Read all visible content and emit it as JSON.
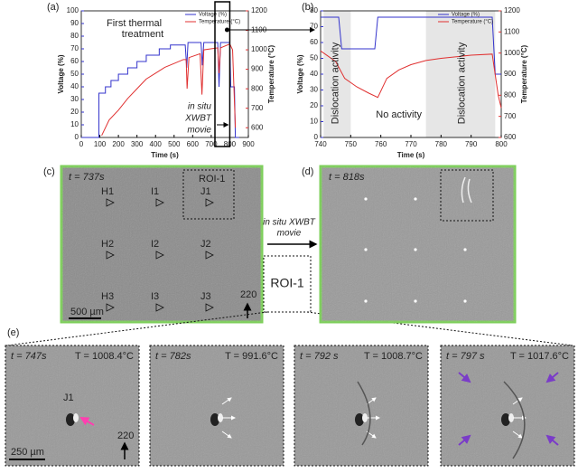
{
  "chart_data": [
    {
      "type": "line",
      "panel": "(a)",
      "xlabel": "Time (s)",
      "ylabel": "Voltage (%)",
      "y2label": "Temperature (°C)",
      "xlim": [
        0,
        900
      ],
      "xticks": [
        0,
        100,
        200,
        300,
        400,
        500,
        600,
        700,
        800,
        900
      ],
      "ylim": [
        0,
        100
      ],
      "yticks": [
        0,
        10,
        20,
        30,
        40,
        50,
        60,
        70,
        80,
        90,
        100
      ],
      "y2lim": [
        550,
        1200
      ],
      "y2ticks": [
        600,
        700,
        800,
        900,
        1000,
        1100,
        1200
      ],
      "series": [
        {
          "name": "Voltage (%)",
          "color": "#3333cc",
          "x": [
            0,
            95,
            95,
            130,
            130,
            160,
            160,
            200,
            200,
            250,
            250,
            300,
            300,
            350,
            350,
            420,
            420,
            480,
            480,
            560,
            568,
            575,
            645,
            652,
            660,
            735,
            742,
            750,
            800,
            805,
            825,
            830,
            850
          ],
          "values": [
            0,
            0,
            35,
            35,
            40,
            40,
            45,
            45,
            50,
            50,
            55,
            55,
            60,
            60,
            65,
            65,
            70,
            70,
            73,
            73,
            55,
            75,
            75,
            57,
            75,
            75,
            40,
            75,
            75,
            40,
            40,
            0,
            0
          ]
        },
        {
          "name": "Temperature (°C)",
          "color": "#e03030",
          "axis": "y2",
          "x": [
            110,
            150,
            200,
            250,
            300,
            350,
            400,
            450,
            500,
            550,
            565,
            570,
            580,
            640,
            650,
            660,
            735,
            742,
            750,
            800,
            815,
            830
          ],
          "values": [
            560,
            640,
            690,
            750,
            800,
            850,
            880,
            910,
            930,
            950,
            950,
            800,
            960,
            980,
            770,
            1000,
            1010,
            880,
            1010,
            1030,
            1000,
            600
          ]
        }
      ],
      "annotation": [
        "First thermal",
        "treatment"
      ],
      "movie_label": [
        "in situ",
        "XWBT",
        "movie"
      ],
      "highlight": [
        720,
        800
      ]
    },
    {
      "type": "line",
      "panel": "(b)",
      "xlabel": "Time (s)",
      "ylabel": "Voltage (%)",
      "y2label": "Temperature (°C)",
      "xlim": [
        740,
        800
      ],
      "xticks": [
        740,
        750,
        760,
        770,
        780,
        790,
        800
      ],
      "ylim": [
        0,
        80
      ],
      "yticks": [
        0,
        10,
        20,
        30,
        40,
        50,
        60,
        70,
        80
      ],
      "y2lim": [
        600,
        1200
      ],
      "y2ticks": [
        600,
        700,
        800,
        900,
        1000,
        1100,
        1200
      ],
      "series": [
        {
          "name": "Voltage (%)",
          "color": "#3333cc",
          "x": [
            740,
            746,
            747,
            758,
            759,
            797,
            798,
            800
          ],
          "values": [
            76,
            76,
            56,
            56,
            76,
            76,
            40,
            40
          ]
        },
        {
          "name": "Temperature (°C)",
          "color": "#e03030",
          "axis": "y2",
          "x": [
            740,
            745,
            748,
            752,
            756,
            759,
            762,
            766,
            770,
            775,
            780,
            790,
            797,
            799,
            800
          ],
          "values": [
            1010,
            960,
            880,
            840,
            810,
            790,
            880,
            920,
            945,
            965,
            975,
            990,
            995,
            800,
            740
          ]
        }
      ],
      "shaded": [
        [
          741,
          750
        ],
        [
          775,
          798
        ]
      ],
      "regions": [
        "Dislocation activity",
        "No activity",
        "Dislocation activity"
      ]
    }
  ],
  "panel_c": {
    "label": "(c)",
    "time": "t = 737s",
    "roi": "ROI-1",
    "markers": [
      "H1",
      "I1",
      "J1",
      "H2",
      "I2",
      "J2",
      "H3",
      "I3",
      "J3"
    ],
    "g": "220",
    "scale": "500 µm"
  },
  "panel_d": {
    "label": "(d)",
    "time": "t = 818s"
  },
  "movie": [
    "in situ XWBT",
    "movie"
  ],
  "roi": "ROI-1",
  "panel_e": {
    "label": "(e)",
    "frames": [
      {
        "time": "t = 747s",
        "temp": "T = 1008.4°C"
      },
      {
        "time": "t = 782s",
        "temp": "T = 991.6°C"
      },
      {
        "time": "t = 792 s",
        "temp": "T = 1008.7°C"
      },
      {
        "time": "t = 797 s",
        "temp": "T = 1017.6°C"
      }
    ],
    "spot": "J1",
    "g": "220",
    "scale": "250 µm"
  }
}
